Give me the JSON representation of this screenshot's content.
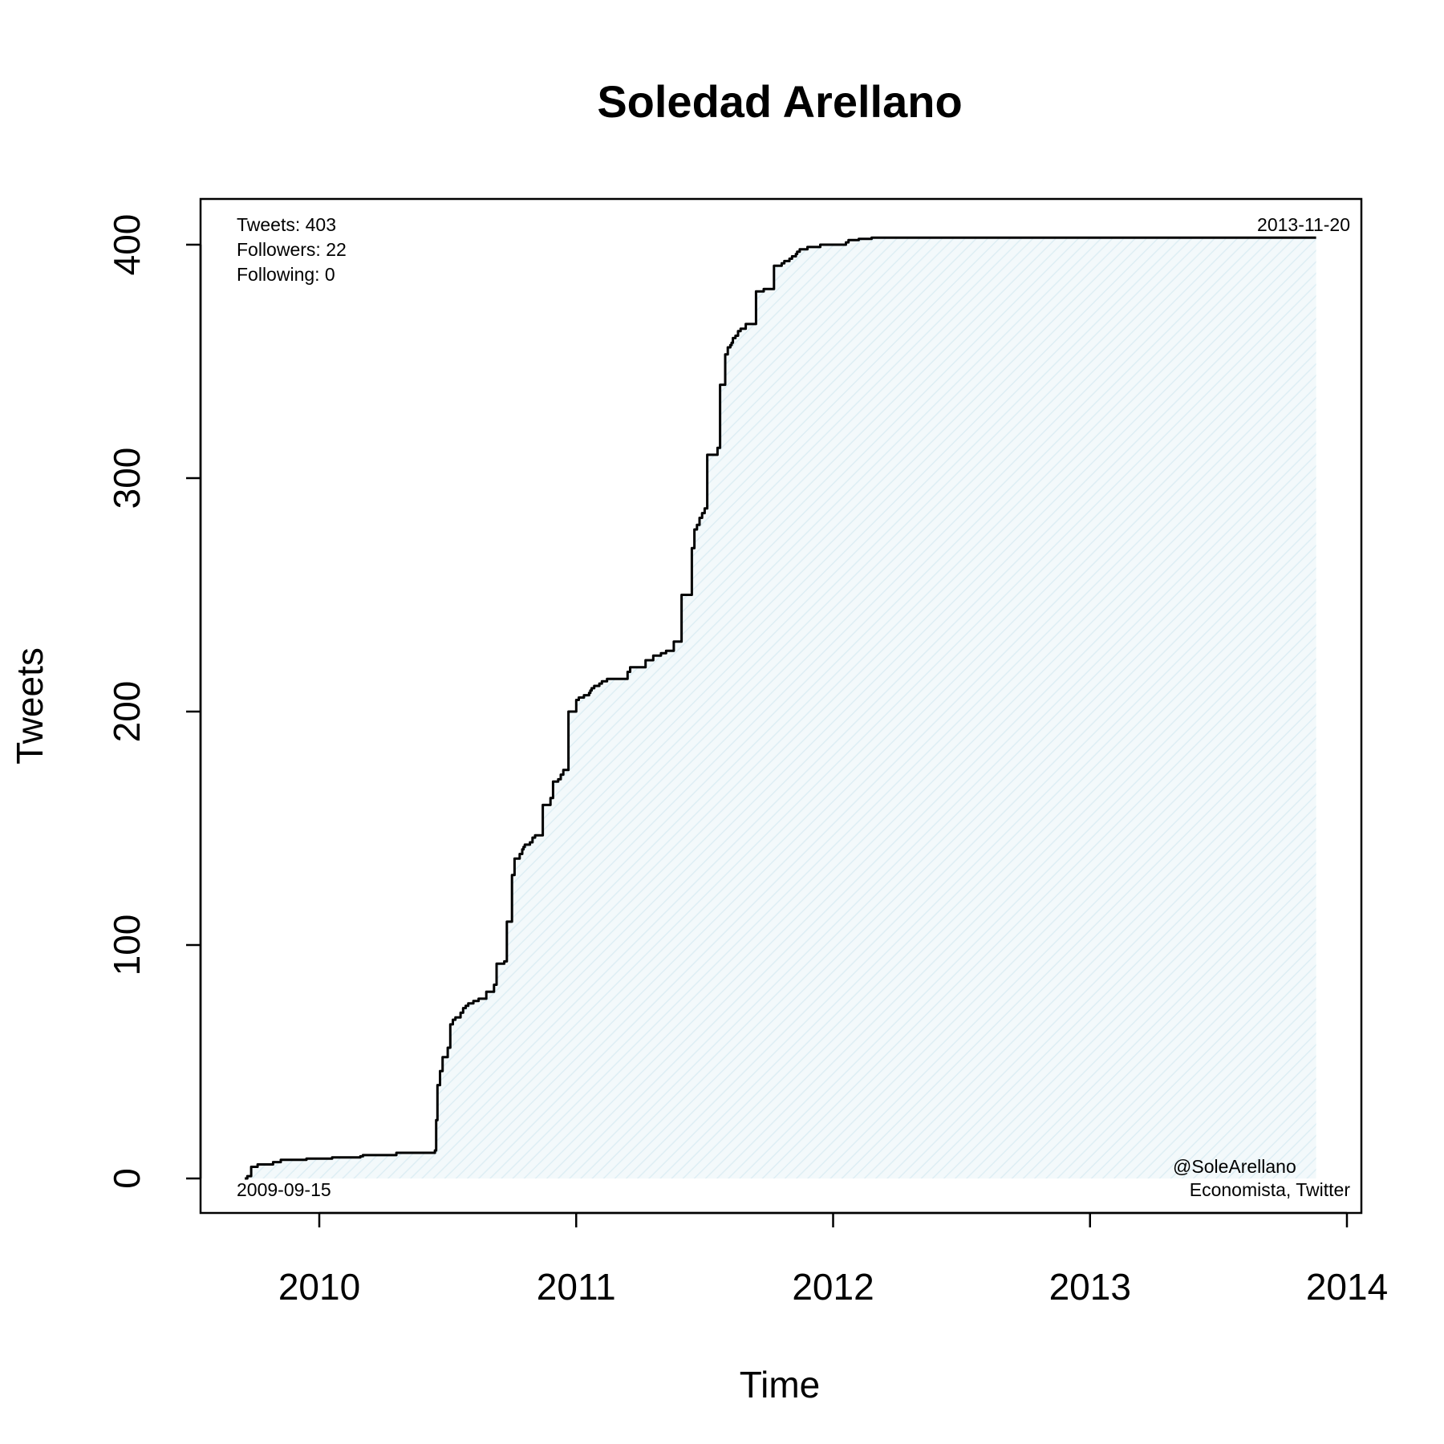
{
  "chart_data": {
    "type": "area",
    "title": "Soledad Arellano",
    "xlabel": "Time",
    "ylabel": "Tweets",
    "xlim": [
      2009.53,
      2014.0
    ],
    "ylim": [
      -15,
      420
    ],
    "x_ticks": [
      2010,
      2011,
      2012,
      2013,
      2014
    ],
    "x_tick_labels": [
      "2010",
      "2011",
      "2012",
      "2013",
      "2014"
    ],
    "y_ticks": [
      0,
      100,
      200,
      300,
      400
    ],
    "y_tick_labels": [
      "0",
      "100",
      "200",
      "300",
      "400"
    ],
    "grid": false,
    "legend": null,
    "colors": {
      "line": "#000000",
      "fill": "#eef7fa"
    },
    "annotations": {
      "stats": [
        "Tweets: 403",
        "Followers: 22",
        "Following: 0"
      ],
      "start_date": "2009-09-15",
      "end_date": "2013-11-20",
      "handle": "@SoleArellano",
      "description": "Economista, Twitter"
    },
    "series": [
      {
        "x": [
          2009.71,
          2009.72,
          2009.735,
          2009.76,
          2009.82,
          2009.85,
          2009.95,
          2010.05,
          2010.16,
          2010.17,
          2010.3,
          2010.45,
          2010.455,
          2010.46,
          2010.47,
          2010.48,
          2010.5,
          2010.51,
          2010.52,
          2010.53,
          2010.55,
          2010.56,
          2010.57,
          2010.58,
          2010.6,
          2010.62,
          2010.65,
          2010.68,
          2010.69,
          2010.72,
          2010.73,
          2010.75,
          2010.76,
          2010.78,
          2010.79,
          2010.795,
          2010.8,
          2010.82,
          2010.83,
          2010.84,
          2010.87,
          2010.9,
          2010.91,
          2010.93,
          2010.94,
          2010.95,
          2010.97,
          2011.0,
          2011.01,
          2011.03,
          2011.05,
          2011.055,
          2011.06,
          2011.07,
          2011.09,
          2011.1,
          2011.12,
          2011.2,
          2011.21,
          2011.27,
          2011.3,
          2011.33,
          2011.35,
          2011.38,
          2011.41,
          2011.45,
          2011.46,
          2011.47,
          2011.48,
          2011.49,
          2011.5,
          2011.51,
          2011.55,
          2011.56,
          2011.58,
          2011.59,
          2011.6,
          2011.605,
          2011.61,
          2011.62,
          2011.63,
          2011.64,
          2011.66,
          2011.7,
          2011.73,
          2011.77,
          2011.8,
          2011.81,
          2011.83,
          2011.84,
          2011.855,
          2011.86,
          2011.87,
          2011.9,
          2011.95,
          2012.05,
          2012.06,
          2012.1,
          2012.15,
          2012.17,
          2012.25,
          2012.26,
          2012.3,
          2012.5,
          2012.8,
          2013.2,
          2013.6,
          2013.88
        ],
        "y": [
          0,
          1,
          5,
          6,
          7,
          8,
          8.5,
          9,
          9.5,
          10,
          11,
          12,
          25,
          40,
          46,
          52,
          56,
          66,
          68,
          69,
          71,
          73,
          74,
          75,
          76,
          77,
          80,
          83,
          92,
          93,
          110,
          130,
          137,
          139,
          141,
          142,
          143,
          144,
          146,
          147,
          160,
          163,
          170,
          171,
          173,
          175,
          200,
          205,
          206,
          207,
          208,
          209,
          210,
          211,
          212,
          213,
          214,
          217,
          219,
          222,
          224,
          225,
          226,
          230,
          250,
          270,
          278,
          280,
          283,
          285,
          287,
          310,
          313,
          340,
          353,
          356,
          357,
          358,
          360,
          361,
          363,
          364,
          366,
          380,
          381,
          391,
          392,
          393,
          394,
          395,
          396,
          397,
          398,
          399,
          400,
          401,
          402,
          402.5,
          403,
          403,
          403,
          403,
          403,
          403,
          403,
          403,
          403,
          403
        ],
        "interpolation": "step-after"
      }
    ]
  }
}
